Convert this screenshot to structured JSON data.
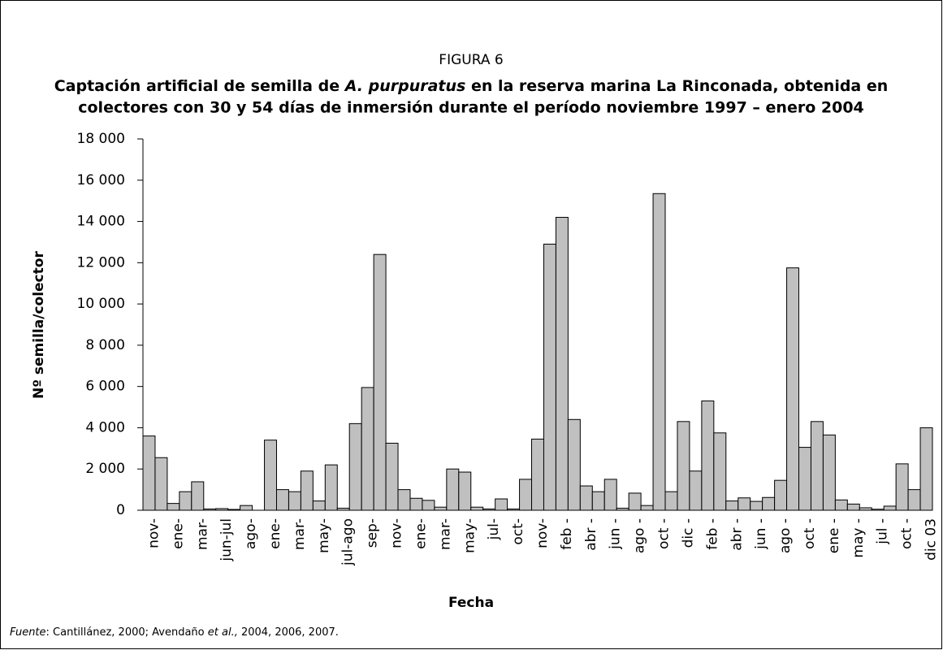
{
  "chart_data": {
    "type": "bar",
    "title": "FIGURA 6",
    "subtitle": [
      "Captación artificial de semilla de ",
      "A. purpuratus",
      " en la reserva marina La Rinconada, obtenida en",
      "colectores con 30 y 54 días de inmersión durante el período noviembre 1997 – enero 2004"
    ],
    "ylabel": "Nº semilla/colector",
    "xlabel": "Fecha",
    "source": [
      "Fuente",
      ": Cantillánez, 2000; Avendaño ",
      "et al.,",
      " 2004, 2006, 2007."
    ],
    "categories": [
      "nov-",
      null,
      "ene-",
      null,
      "mar-",
      null,
      "jun-jul",
      null,
      "ago-",
      null,
      "ene-",
      null,
      "mar-",
      null,
      "may-",
      null,
      "jul-ago",
      null,
      "sep-",
      null,
      "nov-",
      null,
      "ene-",
      null,
      "mar-",
      null,
      "may-",
      null,
      "jul-",
      null,
      "oct-",
      null,
      "nov-",
      null,
      "feb -",
      null,
      "abr -",
      null,
      "jun -",
      null,
      "ago -",
      null,
      "oct -",
      null,
      "dic -",
      null,
      "feb -",
      null,
      "abr -",
      null,
      "jun -",
      null,
      "ago -",
      null,
      "oct -",
      null,
      "ene -",
      null,
      "may -",
      null,
      "jul -",
      null,
      "oct -",
      null,
      "dic 03"
    ],
    "values": [
      3600,
      2550,
      330,
      900,
      1380,
      60,
      80,
      40,
      230,
      0,
      3400,
      1000,
      900,
      1900,
      450,
      2200,
      100,
      4200,
      5950,
      12400,
      3250,
      1000,
      580,
      480,
      150,
      2000,
      1850,
      150,
      60,
      550,
      60,
      1500,
      3450,
      12900,
      14200,
      4400,
      1180,
      900,
      1500,
      100,
      830,
      230,
      15350,
      900,
      4300,
      1900,
      5300,
      3750,
      450,
      600,
      430,
      620,
      1450,
      11750,
      3050,
      4300,
      3650,
      500,
      300,
      120,
      50,
      200,
      2250,
      1000,
      4000
    ],
    "color": "#c0c0c0",
    "ylim": [
      0,
      18000
    ],
    "yticks": [
      0,
      {
        "value": 2000,
        "label": "2 000"
      },
      {
        "value": 4000,
        "label": "4 000"
      },
      {
        "value": 6000,
        "label": "6 000"
      },
      {
        "value": 8000,
        "label": "8 000"
      },
      {
        "value": 10000,
        "label": "10 000"
      },
      {
        "value": 12000,
        "label": "12 000"
      },
      {
        "value": 14000,
        "label": "14 000"
      },
      {
        "value": 16000,
        "label": "16 000"
      },
      {
        "value": 18000,
        "label": "18 000"
      }
    ],
    "grid": false
  }
}
